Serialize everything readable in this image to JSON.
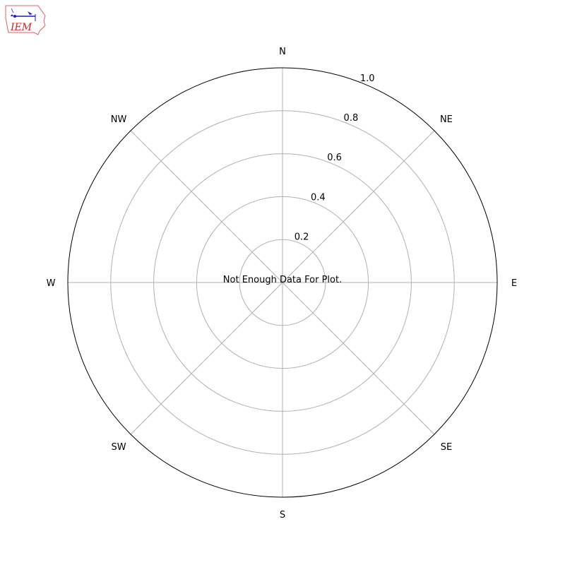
{
  "logo": {
    "text": "IEM",
    "colors": {
      "outline": "#e06060",
      "text": "#cc2222",
      "symbol": "#1a1acc"
    }
  },
  "chart_data": {
    "type": "bar",
    "projection": "polar",
    "title": "",
    "series": [],
    "direction_labels": [
      "N",
      "NE",
      "E",
      "SE",
      "S",
      "SW",
      "W",
      "NW"
    ],
    "radial_ticks": [
      "0.2",
      "0.4",
      "0.6",
      "0.8",
      "1.0"
    ],
    "radial_tick_values": [
      0.2,
      0.4,
      0.6,
      0.8,
      1.0
    ],
    "rlim": [
      0,
      1.0
    ],
    "grid": true,
    "annotation": "Not Enough Data For Plot.",
    "colors": {
      "grid": "#b0b0b0",
      "frame": "#000000"
    }
  }
}
